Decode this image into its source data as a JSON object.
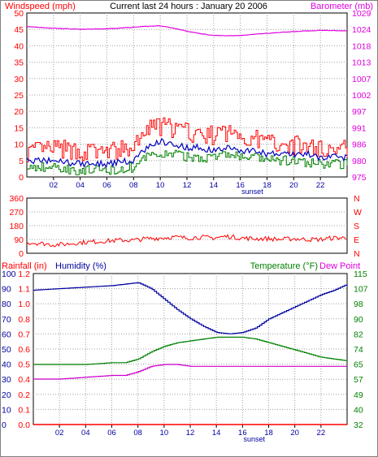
{
  "colors": {
    "wind": "#ff0000",
    "gust": "#ff0000",
    "avg_wind": "#0000c0",
    "wind_low": "#008000",
    "barometer": "#e000e0",
    "humidity": "#0000a0",
    "temperature": "#008000",
    "dewpoint": "#cc00cc",
    "rainfall": "#ff0000",
    "frame": "#000000",
    "grid": "#a0a0a0"
  },
  "chart_data": [
    {
      "type": "line",
      "title": "Current last 24 hours : January 20 2006",
      "ylabel_left": "Windspeed (mph)",
      "ylabel_right": "Barometer (mb)",
      "ylim_left": [
        0,
        50
      ],
      "ylim_right": [
        975,
        1029
      ],
      "yticks_left": [
        "0",
        "5",
        "10",
        "15",
        "20",
        "25",
        "30",
        "35",
        "40",
        "45",
        "50"
      ],
      "yticks_right": [
        "975",
        "980",
        "986",
        "991",
        "997",
        "1002",
        "1007",
        "1013",
        "1018",
        "1024",
        "1029"
      ],
      "xticks": [
        "02",
        "04",
        "06",
        "08",
        "10",
        "12",
        "14",
        "16",
        "18",
        "20",
        "22"
      ],
      "annotation": "sunset",
      "x": [
        0,
        2,
        4,
        6,
        8,
        9,
        10,
        11,
        12,
        13,
        14,
        15,
        16,
        17,
        18,
        19,
        20,
        21,
        22,
        23,
        24
      ],
      "series": [
        {
          "role": "gust",
          "values": [
            7,
            8,
            7,
            7,
            8,
            14,
            15,
            14,
            13,
            12,
            12,
            13,
            12,
            11,
            10,
            10,
            9,
            9,
            8,
            8,
            8
          ]
        },
        {
          "role": "average",
          "values": [
            5,
            5,
            4,
            4,
            5,
            9,
            11,
            10,
            9,
            9,
            8,
            9,
            8,
            8,
            7,
            7,
            7,
            7,
            6,
            6,
            6
          ]
        },
        {
          "role": "low",
          "values": [
            3,
            3,
            2,
            2,
            3,
            6,
            7,
            7,
            6,
            6,
            6,
            7,
            6,
            6,
            5,
            5,
            5,
            4,
            4,
            4,
            4
          ]
        },
        {
          "role": "barometer",
          "values": [
            1024.5,
            1024,
            1023.6,
            1023.8,
            1024.3,
            1024.6,
            1024.8,
            1024,
            1023,
            1022.2,
            1021.6,
            1021.5,
            1021.6,
            1022,
            1022.3,
            1022.6,
            1022.9,
            1023.1,
            1023.3,
            1023.2,
            1023.1
          ]
        }
      ]
    },
    {
      "type": "scatter",
      "ylim": [
        0,
        360
      ],
      "yticks": [
        "0",
        "90",
        "180",
        "270",
        "360"
      ],
      "yticks_right": [
        "N",
        "E",
        "S",
        "W",
        "N"
      ],
      "x": [
        0,
        1,
        2,
        3,
        4,
        5,
        6,
        7,
        8,
        9,
        10,
        11,
        12,
        13,
        14,
        15,
        16,
        17,
        18,
        19,
        20,
        21,
        22,
        23,
        24
      ],
      "values": [
        70,
        65,
        55,
        60,
        70,
        75,
        80,
        85,
        85,
        95,
        100,
        105,
        100,
        105,
        100,
        110,
        100,
        95,
        95,
        90,
        95,
        90,
        90,
        100,
        100
      ]
    },
    {
      "type": "line",
      "ylabels_left": [
        "Rainfall (in)",
        "Humidity (%)"
      ],
      "ylabels_right": [
        "Temperature (°F)",
        "Dew Point"
      ],
      "ylim_humidity": [
        0,
        100
      ],
      "ylim_rain": [
        0,
        1.2
      ],
      "ylim_temp": [
        32,
        115
      ],
      "yticks_humidity": [
        "0",
        "10",
        "20",
        "30",
        "40",
        "50",
        "60",
        "70",
        "80",
        "90",
        "100"
      ],
      "yticks_rain": [
        "0.0",
        "0.1",
        "0.2",
        "0.4",
        "0.5",
        "0.6",
        "0.7",
        "0.8",
        "1.0",
        "1.1",
        "1.2"
      ],
      "yticks_temp": [
        "32",
        "40",
        "49",
        "57",
        "65",
        "74",
        "82",
        "90",
        "98",
        "107",
        "115"
      ],
      "xticks": [
        "02",
        "04",
        "06",
        "08",
        "10",
        "12",
        "14",
        "16",
        "18",
        "20",
        "22"
      ],
      "annotation": "sunset",
      "x": [
        0,
        2,
        4,
        6,
        7,
        8,
        9,
        10,
        11,
        12,
        13,
        14,
        15,
        16,
        17,
        18,
        19,
        20,
        21,
        22,
        23,
        24
      ],
      "series": [
        {
          "role": "humidity",
          "values": [
            89,
            90,
            91,
            92,
            93,
            94,
            90,
            83,
            76,
            70,
            65,
            61,
            60,
            61,
            64,
            70,
            74,
            78,
            82,
            86,
            89,
            93
          ]
        },
        {
          "role": "temperature",
          "values": [
            65,
            65,
            65,
            66,
            66,
            68,
            72,
            75,
            77,
            78,
            79,
            80,
            80,
            80,
            79,
            77,
            75,
            73,
            71,
            69,
            68,
            67
          ]
        },
        {
          "role": "dewpoint",
          "values": [
            57,
            57,
            58,
            59,
            59,
            61,
            64,
            65,
            65,
            64,
            64,
            64,
            64,
            64,
            64,
            64,
            64,
            64,
            64,
            64,
            64,
            64
          ]
        },
        {
          "role": "rainfall",
          "values": [
            0,
            0,
            0,
            0,
            0,
            0,
            0,
            0,
            0,
            0,
            0,
            0,
            0,
            0,
            0,
            0,
            0,
            0,
            0,
            0,
            0,
            0
          ]
        }
      ]
    }
  ]
}
